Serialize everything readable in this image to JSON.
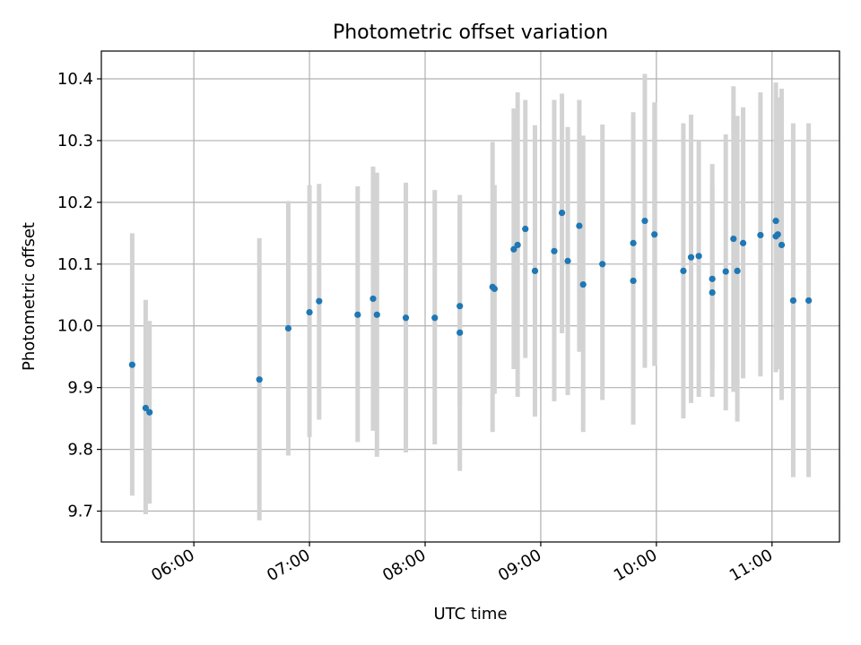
{
  "chart_data": {
    "type": "scatter",
    "title": "Photometric offset variation",
    "xlabel": "UTC time",
    "ylabel": "Photometric offset",
    "x_ticks": [
      "06:00",
      "07:00",
      "08:00",
      "09:00",
      "10:00",
      "11:00"
    ],
    "y_ticks": [
      "9.7",
      "9.8",
      "9.9",
      "10.0",
      "10.1",
      "10.2",
      "10.3",
      "10.4"
    ],
    "xlim": [
      "05:12",
      "11:35"
    ],
    "ylim": [
      9.65,
      10.445
    ],
    "grid": true,
    "colors": {
      "point": "#1f77b4",
      "errorbar": "#d3d3d3",
      "grid": "#b0b0b0"
    },
    "series": [
      {
        "x": [
          "05:28",
          "05:35",
          "05:37",
          "06:34",
          "06:49",
          "07:00",
          "07:05",
          "07:25",
          "07:33",
          "07:35",
          "07:50",
          "08:05",
          "08:18",
          "08:18",
          "08:35",
          "08:36",
          "08:46",
          "08:48",
          "08:52",
          "08:57",
          "09:07",
          "09:11",
          "09:14",
          "09:20",
          "09:22",
          "09:32",
          "09:48",
          "09:48",
          "09:54",
          "09:59",
          "10:14",
          "10:18",
          "10:22",
          "10:29",
          "10:29",
          "10:36",
          "10:40",
          "10:42",
          "10:45",
          "10:54",
          "11:02",
          "11:02",
          "11:03",
          "11:05",
          "11:11",
          "11:19"
        ],
        "y": [
          9.937,
          9.867,
          9.86,
          9.913,
          9.996,
          10.022,
          10.04,
          10.018,
          10.044,
          10.018,
          10.013,
          10.013,
          9.989,
          10.032,
          10.063,
          10.06,
          10.124,
          10.131,
          10.157,
          10.089,
          10.121,
          10.183,
          10.105,
          10.162,
          10.067,
          10.1,
          10.134,
          10.073,
          10.17,
          10.148,
          10.089,
          10.111,
          10.113,
          10.076,
          10.054,
          10.088,
          10.141,
          10.089,
          10.134,
          10.147,
          10.17,
          10.145,
          10.148,
          10.131,
          10.041,
          10.041
        ],
        "yerr_low": [
          9.725,
          9.695,
          9.712,
          9.685,
          9.79,
          9.82,
          9.848,
          9.812,
          9.83,
          9.788,
          9.795,
          9.808,
          9.765,
          9.87,
          9.828,
          9.89,
          9.93,
          9.885,
          9.948,
          9.853,
          9.878,
          9.988,
          9.888,
          9.958,
          9.828,
          9.88,
          9.92,
          9.84,
          9.932,
          9.935,
          9.85,
          9.875,
          9.885,
          9.928,
          9.885,
          9.863,
          9.893,
          9.845,
          9.915,
          9.918,
          9.925,
          9.928,
          9.93,
          9.88,
          9.755,
          9.755
        ],
        "yerr_high": [
          10.15,
          10.042,
          10.008,
          10.142,
          10.202,
          10.228,
          10.23,
          10.226,
          10.258,
          10.248,
          10.232,
          10.22,
          10.212,
          10.205,
          10.298,
          10.228,
          10.352,
          10.378,
          10.366,
          10.325,
          10.366,
          10.376,
          10.322,
          10.366,
          10.308,
          10.326,
          10.346,
          10.308,
          10.408,
          10.362,
          10.328,
          10.342,
          10.3,
          10.262,
          10.226,
          10.31,
          10.388,
          10.34,
          10.354,
          10.378,
          10.394,
          10.38,
          10.37,
          10.384,
          10.328,
          10.328
        ]
      }
    ]
  }
}
